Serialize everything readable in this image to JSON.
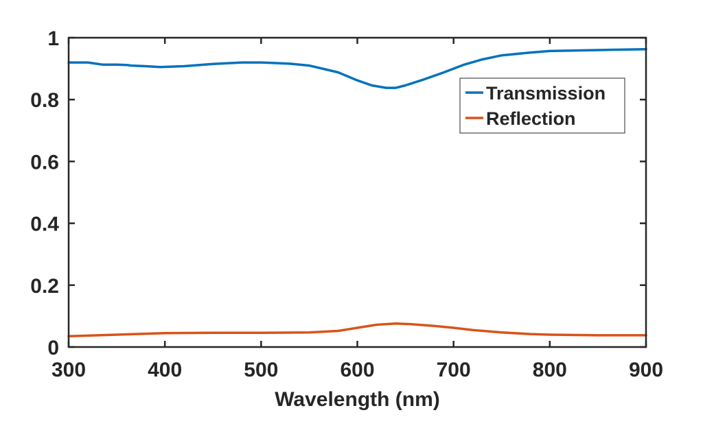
{
  "chart_data": {
    "type": "line",
    "xlabel": "Wavelength (nm)",
    "ylabel": "",
    "xlim": [
      300,
      900
    ],
    "ylim": [
      0,
      1
    ],
    "xticks": [
      "300",
      "400",
      "500",
      "600",
      "700",
      "800",
      "900"
    ],
    "yticks": [
      "0",
      "0.2",
      "0.4",
      "0.6",
      "0.8",
      "1"
    ],
    "grid": false,
    "legend_position": "top-right",
    "series": [
      {
        "name": "Transmission",
        "color": "#0072BD",
        "x": [
          300,
          320,
          335,
          350,
          360,
          365,
          380,
          395,
          420,
          450,
          480,
          500,
          530,
          550,
          580,
          600,
          615,
          630,
          640,
          650,
          670,
          690,
          710,
          730,
          750,
          780,
          800,
          850,
          900
        ],
        "y": [
          0.92,
          0.92,
          0.913,
          0.913,
          0.912,
          0.91,
          0.908,
          0.905,
          0.908,
          0.915,
          0.92,
          0.92,
          0.916,
          0.91,
          0.888,
          0.862,
          0.846,
          0.838,
          0.838,
          0.846,
          0.866,
          0.888,
          0.912,
          0.93,
          0.943,
          0.952,
          0.957,
          0.96,
          0.963
        ]
      },
      {
        "name": "Reflection",
        "color": "#D95319",
        "x": [
          300,
          350,
          400,
          450,
          500,
          550,
          580,
          600,
          620,
          640,
          655,
          680,
          700,
          720,
          750,
          780,
          800,
          850,
          900
        ],
        "y": [
          0.035,
          0.04,
          0.045,
          0.046,
          0.046,
          0.047,
          0.052,
          0.062,
          0.072,
          0.076,
          0.074,
          0.068,
          0.062,
          0.055,
          0.047,
          0.042,
          0.04,
          0.038,
          0.038
        ]
      }
    ]
  }
}
